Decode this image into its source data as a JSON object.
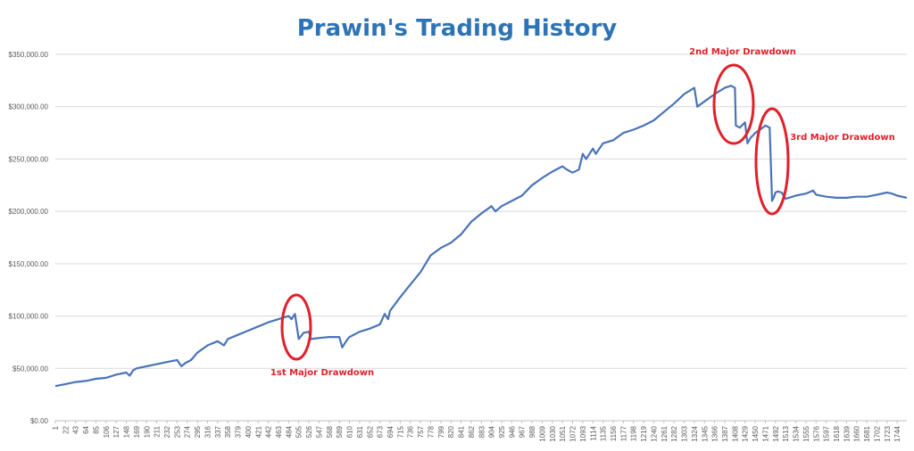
{
  "chart_data": {
    "type": "line",
    "title": "Prawin's Trading History",
    "xlabel": "",
    "ylabel": "",
    "ylim": [
      0,
      350000
    ],
    "xlim": [
      1,
      1764
    ],
    "grid": true,
    "legend": "none",
    "colors": {
      "line": "#4a73b8",
      "title": "#2e74b5",
      "annotation": "#e0202a",
      "grid": "#d9d9d9",
      "axis_text": "#595959"
    },
    "y_ticks": [
      {
        "value": 0,
        "label": "$0.00"
      },
      {
        "value": 50000,
        "label": "$50,000.00"
      },
      {
        "value": 100000,
        "label": "$100,000.00"
      },
      {
        "value": 150000,
        "label": "$150,000.00"
      },
      {
        "value": 200000,
        "label": "$200,000.00"
      },
      {
        "value": 250000,
        "label": "$250,000.00"
      },
      {
        "value": 300000,
        "label": "$300,000.00"
      },
      {
        "value": 350000,
        "label": "$350,000.00"
      }
    ],
    "x_tick_labels": [
      "1",
      "22",
      "43",
      "64",
      "85",
      "106",
      "127",
      "148",
      "169",
      "190",
      "211",
      "232",
      "253",
      "274",
      "295",
      "316",
      "337",
      "358",
      "379",
      "400",
      "421",
      "442",
      "463",
      "484",
      "505",
      "526",
      "547",
      "568",
      "589",
      "610",
      "631",
      "652",
      "673",
      "694",
      "715",
      "736",
      "757",
      "778",
      "799",
      "820",
      "841",
      "862",
      "883",
      "904",
      "925",
      "946",
      "967",
      "988",
      "1009",
      "1030",
      "1051",
      "1072",
      "1093",
      "1114",
      "1135",
      "1156",
      "1177",
      "1198",
      "1219",
      "1240",
      "1261",
      "1282",
      "1303",
      "1324",
      "1345",
      "1366",
      "1387",
      "1408",
      "1429",
      "1450",
      "1471",
      "1492",
      "1513",
      "1534",
      "1555",
      "1576",
      "1597",
      "1618",
      "1639",
      "1660",
      "1681",
      "1702",
      "1723",
      "1744"
    ],
    "series": [
      {
        "x": [
          1,
          22,
          43,
          64,
          85,
          106,
          127,
          148,
          155,
          162,
          169,
          190,
          211,
          232,
          253,
          262,
          270,
          282,
          295,
          316,
          337,
          350,
          358,
          379,
          400,
          421,
          442,
          463,
          484,
          490,
          497,
          505,
          515,
          526,
          530,
          547,
          568,
          589,
          595,
          603,
          610,
          631,
          652,
          673,
          683,
          690,
          694,
          715,
          736,
          757,
          778,
          799,
          820,
          841,
          862,
          883,
          904,
          912,
          925,
          946,
          967,
          988,
          1009,
          1030,
          1051,
          1060,
          1072,
          1085,
          1093,
          1100,
          1114,
          1120,
          1135,
          1156,
          1177,
          1198,
          1219,
          1240,
          1261,
          1282,
          1303,
          1324,
          1330,
          1345,
          1366,
          1387,
          1400,
          1408,
          1410,
          1418,
          1429,
          1434,
          1440,
          1450,
          1460,
          1471,
          1480,
          1485,
          1489,
          1492,
          1497,
          1505,
          1513,
          1534,
          1555,
          1570,
          1576,
          1597,
          1618,
          1639,
          1660,
          1681,
          1702,
          1723,
          1733,
          1744,
          1764
        ],
        "y": [
          33000,
          35000,
          37000,
          38000,
          40000,
          41000,
          44000,
          46000,
          43000,
          48000,
          50000,
          52000,
          54000,
          56000,
          58000,
          52000,
          55000,
          58000,
          65000,
          72000,
          76000,
          72000,
          78000,
          82000,
          86000,
          90000,
          94000,
          97000,
          100000,
          97000,
          102000,
          78000,
          84000,
          85000,
          78000,
          79000,
          80000,
          80000,
          70000,
          76000,
          80000,
          85000,
          88000,
          92000,
          102000,
          97000,
          105000,
          118000,
          130000,
          142000,
          158000,
          165000,
          170000,
          178000,
          190000,
          198000,
          205000,
          200000,
          205000,
          210000,
          215000,
          225000,
          232000,
          238000,
          243000,
          240000,
          237000,
          240000,
          255000,
          250000,
          260000,
          255000,
          265000,
          268000,
          275000,
          278000,
          282000,
          287000,
          295000,
          303000,
          312000,
          318000,
          300000,
          305000,
          312000,
          318000,
          320000,
          318000,
          282000,
          280000,
          285000,
          265000,
          270000,
          275000,
          278000,
          282000,
          280000,
          210000,
          214000,
          218000,
          219000,
          218000,
          212000,
          215000,
          217000,
          220000,
          216000,
          214000,
          213000,
          213000,
          214000,
          214000,
          216000,
          218000,
          217000,
          215000,
          213000
        ]
      }
    ],
    "annotations": [
      {
        "text": "1st Major Drawdown"
      },
      {
        "text": "2nd Major Drawdown"
      },
      {
        "text": "3rd Major Drawdown"
      }
    ]
  }
}
